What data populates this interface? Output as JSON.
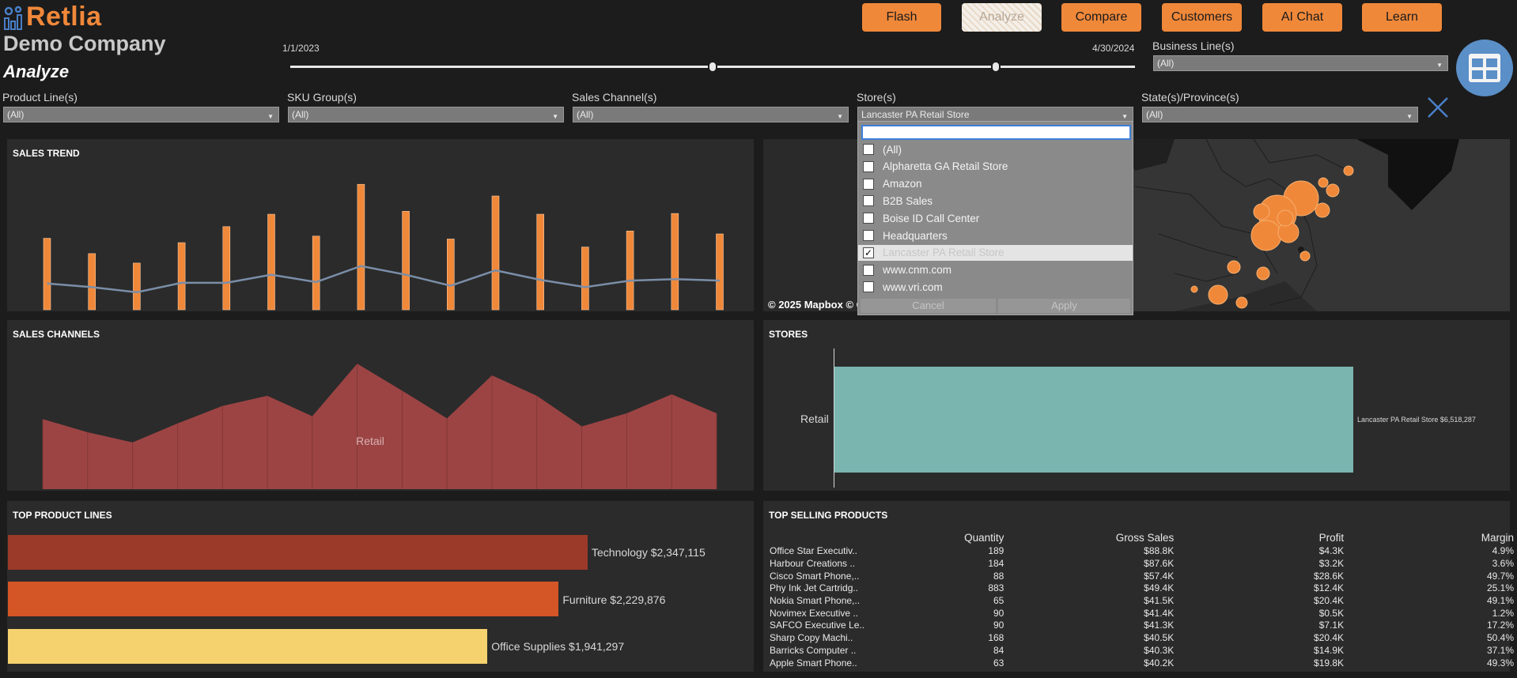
{
  "brand": {
    "name": "Retlia",
    "company": "Demo Company",
    "page": "Analyze",
    "accent": "#f0883a"
  },
  "nav": [
    "Flash",
    "Analyze",
    "Compare",
    "Customers",
    "AI Chat",
    "Learn"
  ],
  "date_range": {
    "start": "1/1/2023",
    "end": "4/30/2024",
    "slider_start_fraction": 0.5,
    "slider_end_fraction": 0.835
  },
  "filters": {
    "business_line": {
      "label": "Business Line(s)",
      "value": "(All)"
    },
    "product_line": {
      "label": "Product Line(s)",
      "value": "(All)"
    },
    "sku_group": {
      "label": "SKU Group(s)",
      "value": "(All)"
    },
    "sales_channel": {
      "label": "Sales Channel(s)",
      "value": "(All)"
    },
    "store": {
      "label": "Store(s)",
      "value": "Lancaster PA Retail Store"
    },
    "state": {
      "label": "State(s)/Province(s)",
      "value": "(All)"
    }
  },
  "store_dropdown": {
    "search_value": "",
    "items": [
      {
        "label": "(All)",
        "checked": false
      },
      {
        "label": "Alpharetta GA Retail Store",
        "checked": false
      },
      {
        "label": "Amazon",
        "checked": false
      },
      {
        "label": "B2B Sales",
        "checked": false
      },
      {
        "label": "Boise ID Call Center",
        "checked": false
      },
      {
        "label": "Headquarters",
        "checked": false
      },
      {
        "label": "Lancaster PA Retail Store",
        "checked": true
      },
      {
        "label": "www.cnm.com",
        "checked": false
      },
      {
        "label": "www.vri.com",
        "checked": false
      }
    ],
    "cancel": "Cancel",
    "apply": "Apply"
  },
  "panels": {
    "sales_trend": "SALES TREND",
    "sales_channels": "SALES CHANNELS",
    "stores": "STORES",
    "top_product_lines": "TOP PRODUCT LINES",
    "top_selling_products": "TOP SELLING PRODUCTS"
  },
  "map": {
    "credit": "© 2025 Mapbox  © OpenStreetMap"
  },
  "chart_data": [
    {
      "type": "bar",
      "panel": "SALES TREND",
      "categories": [
        "1",
        "2",
        "3",
        "4",
        "5",
        "6",
        "7",
        "8",
        "9",
        "10",
        "11",
        "12",
        "13",
        "14",
        "15",
        "16"
      ],
      "series": [
        {
          "values": [
            98,
            77,
            64,
            92,
            114,
            131,
            101,
            172,
            135,
            97,
            156,
            131,
            86,
            108,
            132,
            104
          ]
        },
        {
          "values": [
            36,
            31,
            24,
            37,
            37,
            48,
            38,
            60,
            48,
            33,
            54,
            41,
            31,
            40,
            42,
            40
          ]
        }
      ],
      "ylim": [
        0,
        195
      ]
    },
    {
      "type": "area",
      "panel": "SALES CHANNELS",
      "categories": [
        "1",
        "2",
        "3",
        "4",
        "5",
        "6",
        "7",
        "8",
        "9",
        "10",
        "11",
        "12",
        "13",
        "14",
        "15",
        "16"
      ],
      "series": [
        {
          "name": "Retail",
          "values": [
            96,
            78,
            64,
            90,
            114,
            128,
            100,
            172,
            135,
            97,
            156,
            128,
            86,
            104,
            130,
            104
          ]
        }
      ],
      "ylim": [
        0,
        195
      ]
    },
    {
      "type": "bar",
      "panel": "STORES",
      "categories": [
        "Retail"
      ],
      "values": [
        6518287
      ],
      "labels": [
        "Lancaster PA Retail Store $6,518,287"
      ]
    },
    {
      "type": "bar",
      "panel": "TOP PRODUCT LINES",
      "categories": [
        "Technology",
        "Furniture",
        "Office Supplies"
      ],
      "values": [
        2347115,
        2229876,
        1941297
      ],
      "labels": [
        "Technology $2,347,115",
        "Furniture $2,229,876",
        "Office Supplies $1,941,297"
      ],
      "colors": [
        "#9c3a2a",
        "#d45526",
        "#f5d26e"
      ]
    }
  ],
  "top_products": {
    "columns": [
      "",
      "Quantity",
      "Gross Sales",
      "Profit",
      "Margin"
    ],
    "rows": [
      [
        "Office Star Executiv..",
        "189",
        "$88.8K",
        "$4.3K",
        "4.9%"
      ],
      [
        "Harbour Creations ..",
        "184",
        "$87.6K",
        "$3.2K",
        "3.6%"
      ],
      [
        "Cisco Smart Phone,..",
        "88",
        "$57.4K",
        "$28.6K",
        "49.7%"
      ],
      [
        "Phy Ink Jet Cartridg..",
        "883",
        "$49.4K",
        "$12.4K",
        "25.1%"
      ],
      [
        "Nokia Smart Phone,..",
        "65",
        "$41.5K",
        "$20.4K",
        "49.1%"
      ],
      [
        "Novimex Executive ..",
        "90",
        "$41.4K",
        "$0.5K",
        "1.2%"
      ],
      [
        "SAFCO Executive Le..",
        "90",
        "$41.3K",
        "$7.1K",
        "17.2%"
      ],
      [
        "Sharp Copy Machi..",
        "168",
        "$40.5K",
        "$20.4K",
        "50.4%"
      ],
      [
        "Barricks Computer ..",
        "84",
        "$40.3K",
        "$14.9K",
        "37.1%"
      ],
      [
        "Apple Smart Phone..",
        "63",
        "$40.2K",
        "$19.8K",
        "49.3%"
      ]
    ]
  }
}
